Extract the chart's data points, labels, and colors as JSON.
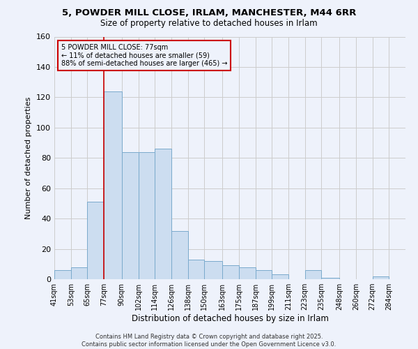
{
  "title": "5, POWDER MILL CLOSE, IRLAM, MANCHESTER, M44 6RR",
  "subtitle": "Size of property relative to detached houses in Irlam",
  "xlabel": "Distribution of detached houses by size in Irlam",
  "ylabel": "Number of detached properties",
  "footer_line1": "Contains HM Land Registry data © Crown copyright and database right 2025.",
  "footer_line2": "Contains public sector information licensed under the Open Government Licence v3.0.",
  "bar_color": "#ccddf0",
  "bar_edgecolor": "#7aaacc",
  "grid_color": "#cccccc",
  "background_color": "#eef2fb",
  "annotation_box_edgecolor": "#cc0000",
  "annotation_line_color": "#cc0000",
  "annotation_text_line1": "5 POWDER MILL CLOSE: 77sqm",
  "annotation_text_line2": "← 11% of detached houses are smaller (59)",
  "annotation_text_line3": "88% of semi-detached houses are larger (465) →",
  "property_line_x": 77,
  "categories": [
    "41sqm",
    "53sqm",
    "65sqm",
    "77sqm",
    "90sqm",
    "102sqm",
    "114sqm",
    "126sqm",
    "138sqm",
    "150sqm",
    "163sqm",
    "175sqm",
    "187sqm",
    "199sqm",
    "211sqm",
    "223sqm",
    "235sqm",
    "248sqm",
    "260sqm",
    "272sqm",
    "284sqm"
  ],
  "bin_edges": [
    41,
    53,
    65,
    77,
    90,
    102,
    114,
    126,
    138,
    150,
    163,
    175,
    187,
    199,
    211,
    223,
    235,
    248,
    260,
    272,
    284,
    296
  ],
  "values": [
    6,
    8,
    51,
    124,
    84,
    84,
    86,
    32,
    13,
    12,
    9,
    8,
    6,
    3,
    0,
    6,
    1,
    0,
    0,
    2,
    0
  ],
  "ylim": [
    0,
    160
  ],
  "yticks": [
    0,
    20,
    40,
    60,
    80,
    100,
    120,
    140,
    160
  ]
}
